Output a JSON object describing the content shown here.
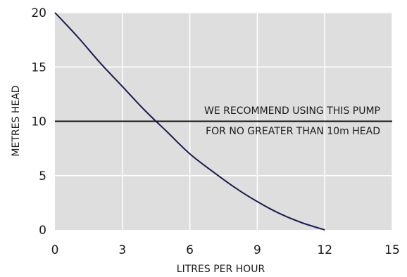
{
  "chart_data": {
    "type": "line",
    "title": "",
    "xlabel": "LITRES PER HOUR",
    "ylabel": "METRES HEAD",
    "xlim": [
      0,
      15
    ],
    "ylim": [
      0,
      20
    ],
    "x_ticks": [
      0,
      3,
      6,
      9,
      12,
      15
    ],
    "y_ticks": [
      0,
      5,
      10,
      15,
      20
    ],
    "grid": true,
    "background_color": "#dedede",
    "grid_color": "#ffffff",
    "line_color": "#1b1b4d",
    "series": [
      {
        "x": [
          0,
          1,
          2,
          3,
          4,
          5,
          6,
          7,
          8,
          9,
          10,
          11,
          12
        ],
        "y": [
          20,
          17.8,
          15.4,
          13.2,
          11.0,
          9.0,
          7.0,
          5.4,
          3.9,
          2.6,
          1.5,
          0.65,
          0
        ]
      }
    ],
    "reference_line": {
      "y": 10
    },
    "annotation": {
      "line1": "WE RECOMMEND USING THIS PUMP",
      "line2": "FOR NO GREATER THAN 10m HEAD"
    }
  }
}
